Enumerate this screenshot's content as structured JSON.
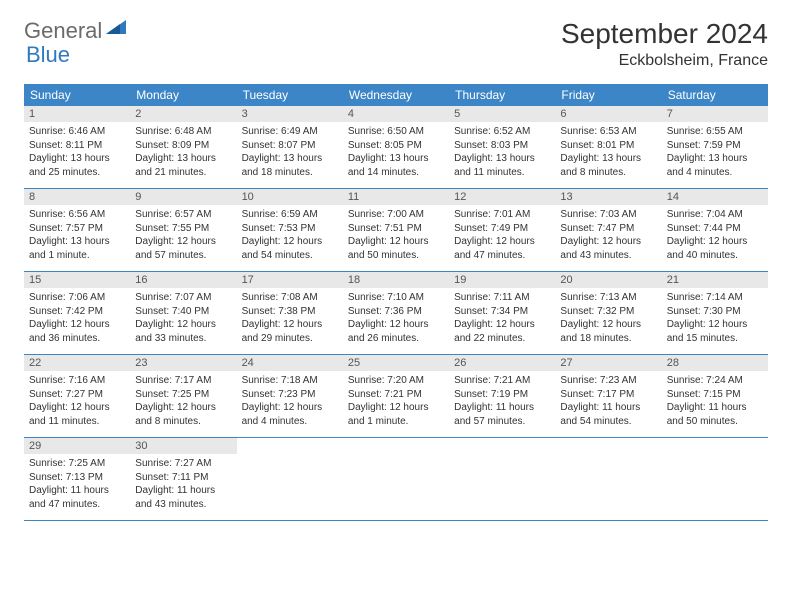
{
  "logo": {
    "general": "General",
    "blue": "Blue"
  },
  "title": "September 2024",
  "location": "Eckbolsheim, France",
  "colors": {
    "header_bg": "#3c85c6",
    "header_text": "#ffffff",
    "daynum_bg": "#e8e8e8",
    "border": "#3c85c6",
    "logo_gray": "#6b6b6b",
    "logo_blue": "#2f7abf"
  },
  "day_names": [
    "Sunday",
    "Monday",
    "Tuesday",
    "Wednesday",
    "Thursday",
    "Friday",
    "Saturday"
  ],
  "weeks": [
    [
      {
        "num": "1",
        "sunrise": "Sunrise: 6:46 AM",
        "sunset": "Sunset: 8:11 PM",
        "daylight": "Daylight: 13 hours and 25 minutes."
      },
      {
        "num": "2",
        "sunrise": "Sunrise: 6:48 AM",
        "sunset": "Sunset: 8:09 PM",
        "daylight": "Daylight: 13 hours and 21 minutes."
      },
      {
        "num": "3",
        "sunrise": "Sunrise: 6:49 AM",
        "sunset": "Sunset: 8:07 PM",
        "daylight": "Daylight: 13 hours and 18 minutes."
      },
      {
        "num": "4",
        "sunrise": "Sunrise: 6:50 AM",
        "sunset": "Sunset: 8:05 PM",
        "daylight": "Daylight: 13 hours and 14 minutes."
      },
      {
        "num": "5",
        "sunrise": "Sunrise: 6:52 AM",
        "sunset": "Sunset: 8:03 PM",
        "daylight": "Daylight: 13 hours and 11 minutes."
      },
      {
        "num": "6",
        "sunrise": "Sunrise: 6:53 AM",
        "sunset": "Sunset: 8:01 PM",
        "daylight": "Daylight: 13 hours and 8 minutes."
      },
      {
        "num": "7",
        "sunrise": "Sunrise: 6:55 AM",
        "sunset": "Sunset: 7:59 PM",
        "daylight": "Daylight: 13 hours and 4 minutes."
      }
    ],
    [
      {
        "num": "8",
        "sunrise": "Sunrise: 6:56 AM",
        "sunset": "Sunset: 7:57 PM",
        "daylight": "Daylight: 13 hours and 1 minute."
      },
      {
        "num": "9",
        "sunrise": "Sunrise: 6:57 AM",
        "sunset": "Sunset: 7:55 PM",
        "daylight": "Daylight: 12 hours and 57 minutes."
      },
      {
        "num": "10",
        "sunrise": "Sunrise: 6:59 AM",
        "sunset": "Sunset: 7:53 PM",
        "daylight": "Daylight: 12 hours and 54 minutes."
      },
      {
        "num": "11",
        "sunrise": "Sunrise: 7:00 AM",
        "sunset": "Sunset: 7:51 PM",
        "daylight": "Daylight: 12 hours and 50 minutes."
      },
      {
        "num": "12",
        "sunrise": "Sunrise: 7:01 AM",
        "sunset": "Sunset: 7:49 PM",
        "daylight": "Daylight: 12 hours and 47 minutes."
      },
      {
        "num": "13",
        "sunrise": "Sunrise: 7:03 AM",
        "sunset": "Sunset: 7:47 PM",
        "daylight": "Daylight: 12 hours and 43 minutes."
      },
      {
        "num": "14",
        "sunrise": "Sunrise: 7:04 AM",
        "sunset": "Sunset: 7:44 PM",
        "daylight": "Daylight: 12 hours and 40 minutes."
      }
    ],
    [
      {
        "num": "15",
        "sunrise": "Sunrise: 7:06 AM",
        "sunset": "Sunset: 7:42 PM",
        "daylight": "Daylight: 12 hours and 36 minutes."
      },
      {
        "num": "16",
        "sunrise": "Sunrise: 7:07 AM",
        "sunset": "Sunset: 7:40 PM",
        "daylight": "Daylight: 12 hours and 33 minutes."
      },
      {
        "num": "17",
        "sunrise": "Sunrise: 7:08 AM",
        "sunset": "Sunset: 7:38 PM",
        "daylight": "Daylight: 12 hours and 29 minutes."
      },
      {
        "num": "18",
        "sunrise": "Sunrise: 7:10 AM",
        "sunset": "Sunset: 7:36 PM",
        "daylight": "Daylight: 12 hours and 26 minutes."
      },
      {
        "num": "19",
        "sunrise": "Sunrise: 7:11 AM",
        "sunset": "Sunset: 7:34 PM",
        "daylight": "Daylight: 12 hours and 22 minutes."
      },
      {
        "num": "20",
        "sunrise": "Sunrise: 7:13 AM",
        "sunset": "Sunset: 7:32 PM",
        "daylight": "Daylight: 12 hours and 18 minutes."
      },
      {
        "num": "21",
        "sunrise": "Sunrise: 7:14 AM",
        "sunset": "Sunset: 7:30 PM",
        "daylight": "Daylight: 12 hours and 15 minutes."
      }
    ],
    [
      {
        "num": "22",
        "sunrise": "Sunrise: 7:16 AM",
        "sunset": "Sunset: 7:27 PM",
        "daylight": "Daylight: 12 hours and 11 minutes."
      },
      {
        "num": "23",
        "sunrise": "Sunrise: 7:17 AM",
        "sunset": "Sunset: 7:25 PM",
        "daylight": "Daylight: 12 hours and 8 minutes."
      },
      {
        "num": "24",
        "sunrise": "Sunrise: 7:18 AM",
        "sunset": "Sunset: 7:23 PM",
        "daylight": "Daylight: 12 hours and 4 minutes."
      },
      {
        "num": "25",
        "sunrise": "Sunrise: 7:20 AM",
        "sunset": "Sunset: 7:21 PM",
        "daylight": "Daylight: 12 hours and 1 minute."
      },
      {
        "num": "26",
        "sunrise": "Sunrise: 7:21 AM",
        "sunset": "Sunset: 7:19 PM",
        "daylight": "Daylight: 11 hours and 57 minutes."
      },
      {
        "num": "27",
        "sunrise": "Sunrise: 7:23 AM",
        "sunset": "Sunset: 7:17 PM",
        "daylight": "Daylight: 11 hours and 54 minutes."
      },
      {
        "num": "28",
        "sunrise": "Sunrise: 7:24 AM",
        "sunset": "Sunset: 7:15 PM",
        "daylight": "Daylight: 11 hours and 50 minutes."
      }
    ],
    [
      {
        "num": "29",
        "sunrise": "Sunrise: 7:25 AM",
        "sunset": "Sunset: 7:13 PM",
        "daylight": "Daylight: 11 hours and 47 minutes."
      },
      {
        "num": "30",
        "sunrise": "Sunrise: 7:27 AM",
        "sunset": "Sunset: 7:11 PM",
        "daylight": "Daylight: 11 hours and 43 minutes."
      },
      null,
      null,
      null,
      null,
      null
    ]
  ]
}
